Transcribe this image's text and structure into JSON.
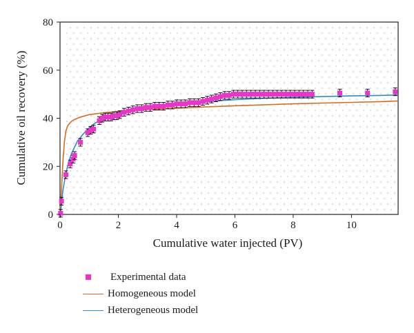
{
  "chart_data": {
    "type": "line",
    "title": "",
    "xlabel": "Cumulative water injected (PV)",
    "ylabel": "Cumulative oil recovery (%)",
    "xlim": [
      0,
      11.6
    ],
    "ylim": [
      0,
      80
    ],
    "xticks": [
      0,
      2,
      4,
      6,
      8,
      10
    ],
    "yticks": [
      0,
      20,
      40,
      60,
      80
    ],
    "grid": false,
    "legend_position": "bottom-left, below plot",
    "colors": {
      "experimental": "#ee33cc",
      "homogeneous": "#d86a1e",
      "heterogeneous": "#2a8ccc",
      "errorbar": "#111111"
    },
    "series": [
      {
        "name": "Experimental data",
        "kind": "scatter",
        "error": 1.6,
        "x": [
          0.02,
          0.05,
          0.2,
          0.35,
          0.45,
          0.5,
          0.7,
          0.95,
          1.05,
          1.15,
          1.35,
          1.45,
          1.55,
          1.65,
          1.75,
          1.85,
          1.95,
          2.05,
          2.2,
          2.35,
          2.5,
          2.65,
          2.8,
          2.95,
          3.1,
          3.25,
          3.4,
          3.55,
          3.7,
          3.85,
          4.0,
          4.15,
          4.3,
          4.45,
          4.6,
          4.75,
          4.9,
          5.05,
          5.2,
          5.35,
          5.5,
          5.65,
          5.8,
          5.95,
          6.1,
          6.25,
          6.4,
          6.55,
          6.7,
          6.85,
          7.0,
          7.15,
          7.3,
          7.45,
          7.6,
          7.75,
          7.9,
          8.05,
          8.2,
          8.35,
          8.5,
          8.65,
          9.6,
          10.55,
          11.5
        ],
        "y": [
          0.5,
          5.5,
          16.5,
          21.0,
          23.0,
          24.5,
          30.0,
          34.0,
          35.0,
          35.5,
          39.0,
          40.0,
          40.5,
          40.5,
          40.5,
          41.0,
          41.0,
          41.5,
          42.5,
          43.0,
          43.5,
          44.0,
          44.0,
          44.5,
          44.5,
          45.0,
          45.0,
          45.0,
          45.5,
          45.5,
          46.0,
          46.0,
          46.0,
          46.5,
          46.5,
          46.5,
          47.0,
          47.5,
          48.0,
          48.5,
          49.0,
          49.5,
          49.5,
          50.0,
          50.0,
          50.0,
          50.0,
          50.0,
          50.0,
          50.0,
          50.0,
          50.0,
          50.0,
          50.0,
          50.0,
          50.0,
          50.0,
          50.0,
          50.0,
          50.0,
          50.0,
          50.0,
          50.5,
          50.5,
          51.0
        ]
      },
      {
        "name": "Homogeneous model",
        "kind": "line",
        "x": [
          0,
          0.05,
          0.1,
          0.15,
          0.2,
          0.25,
          0.3,
          0.4,
          0.5,
          0.7,
          1.0,
          1.5,
          2.0,
          3.0,
          4.0,
          5.0,
          6.0,
          7.0,
          8.0,
          9.0,
          10.0,
          11.0,
          11.6
        ],
        "y": [
          0,
          10,
          22,
          30,
          34.5,
          36.5,
          37.5,
          38.8,
          39.5,
          40.5,
          41.5,
          42.3,
          42.8,
          43.6,
          44.2,
          44.7,
          45.2,
          45.6,
          46.0,
          46.3,
          46.6,
          46.9,
          47.2
        ]
      },
      {
        "name": "Heterogeneous model",
        "kind": "line",
        "x": [
          0,
          0.05,
          0.1,
          0.2,
          0.3,
          0.4,
          0.5,
          0.6,
          0.8,
          1.0,
          1.2,
          1.5,
          1.8,
          2.0,
          2.5,
          3.0,
          3.5,
          4.0,
          4.5,
          5.0,
          5.5,
          6.0,
          7.0,
          8.0,
          9.0,
          10.0,
          11.0,
          11.6
        ],
        "y": [
          0,
          4,
          10,
          17,
          22,
          25.5,
          28,
          30.5,
          33.5,
          36,
          38,
          40,
          41.5,
          42.3,
          43.5,
          44.3,
          45.0,
          45.6,
          46.2,
          46.8,
          47.3,
          47.7,
          48.3,
          48.7,
          49.0,
          49.3,
          49.5,
          49.7
        ]
      }
    ]
  }
}
